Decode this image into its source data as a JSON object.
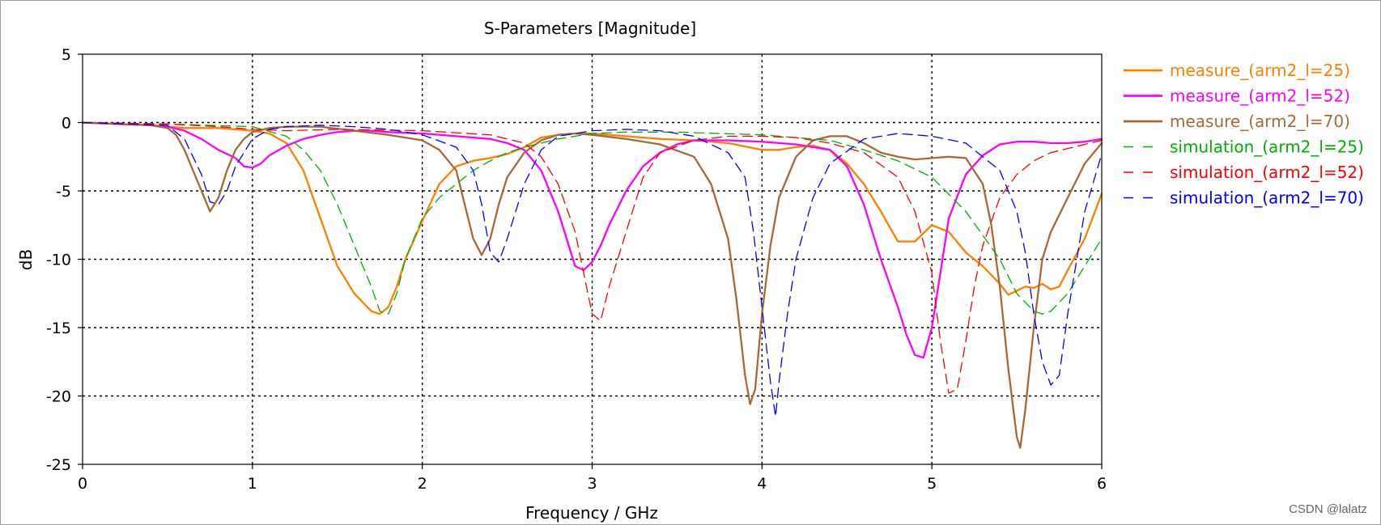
{
  "chart_data": {
    "type": "line",
    "title": "S-Parameters [Magnitude]",
    "xlabel": "Frequency / GHz",
    "ylabel": "dB",
    "xlim": [
      0,
      6
    ],
    "ylim": [
      -25,
      5
    ],
    "xticks": [
      0,
      1,
      2,
      3,
      4,
      5,
      6
    ],
    "yticks": [
      5,
      0,
      -5,
      -10,
      -15,
      -20,
      -25
    ],
    "grid": true,
    "legend_position": "right",
    "series": [
      {
        "name": "measure_(arm2_l=25)",
        "color": "#ff7f00",
        "style": "solid",
        "x": [
          0,
          0.2,
          0.4,
          0.5,
          0.6,
          0.8,
          1.0,
          1.1,
          1.2,
          1.3,
          1.4,
          1.5,
          1.6,
          1.7,
          1.75,
          1.8,
          1.85,
          1.9,
          2.0,
          2.1,
          2.2,
          2.3,
          2.4,
          2.5,
          2.6,
          2.7,
          2.8,
          2.9,
          3.0,
          3.2,
          3.4,
          3.6,
          3.8,
          4.0,
          4.1,
          4.2,
          4.3,
          4.4,
          4.5,
          4.6,
          4.7,
          4.8,
          4.9,
          5.0,
          5.1,
          5.2,
          5.3,
          5.4,
          5.45,
          5.5,
          5.55,
          5.6,
          5.65,
          5.7,
          5.75,
          5.8,
          5.9,
          6.0
        ],
        "y": [
          0,
          -0.1,
          -0.2,
          -0.3,
          -0.4,
          -0.4,
          -0.6,
          -0.8,
          -1.5,
          -3.5,
          -7,
          -10.5,
          -12.5,
          -13.8,
          -14,
          -13.5,
          -12,
          -10,
          -7.2,
          -4.5,
          -3.2,
          -2.8,
          -2.6,
          -2.3,
          -1.8,
          -1.1,
          -0.9,
          -0.8,
          -0.8,
          -1.0,
          -1.2,
          -1.3,
          -1.5,
          -2.0,
          -2.0,
          -1.8,
          -1.7,
          -2.0,
          -3.0,
          -4.5,
          -6.5,
          -8.7,
          -8.7,
          -7.5,
          -8.0,
          -9.5,
          -10.5,
          -11.8,
          -12.6,
          -12.3,
          -12.0,
          -12.1,
          -11.8,
          -12.2,
          -12.0,
          -10.8,
          -8.5,
          -5.2
        ]
      },
      {
        "name": "measure_(arm2_l=52)",
        "color": "#ff00ff",
        "style": "solid",
        "x": [
          0,
          0.2,
          0.4,
          0.5,
          0.6,
          0.7,
          0.8,
          0.9,
          0.95,
          1.0,
          1.05,
          1.1,
          1.2,
          1.3,
          1.4,
          1.5,
          1.6,
          1.7,
          1.8,
          2.0,
          2.2,
          2.4,
          2.5,
          2.6,
          2.7,
          2.8,
          2.85,
          2.9,
          2.95,
          3.0,
          3.05,
          3.1,
          3.2,
          3.3,
          3.4,
          3.5,
          3.6,
          3.8,
          4.0,
          4.2,
          4.4,
          4.5,
          4.6,
          4.7,
          4.8,
          4.85,
          4.9,
          4.95,
          5.0,
          5.05,
          5.1,
          5.2,
          5.3,
          5.4,
          5.5,
          5.6,
          5.7,
          5.8,
          5.9,
          6.0
        ],
        "y": [
          0,
          -0.1,
          -0.2,
          -0.3,
          -0.6,
          -1.2,
          -2.0,
          -2.6,
          -3.2,
          -3.3,
          -3.0,
          -2.4,
          -1.7,
          -1.2,
          -0.9,
          -0.7,
          -0.6,
          -0.6,
          -0.7,
          -0.8,
          -1.0,
          -1.2,
          -1.5,
          -2.0,
          -3.5,
          -6.5,
          -8.5,
          -10.5,
          -10.8,
          -10.2,
          -9.0,
          -7.5,
          -5.0,
          -3.2,
          -2.2,
          -1.6,
          -1.3,
          -1.3,
          -1.4,
          -1.6,
          -2.0,
          -3.2,
          -6.0,
          -10.0,
          -13.5,
          -15.5,
          -17.0,
          -17.2,
          -15.0,
          -11.0,
          -7.0,
          -3.8,
          -2.4,
          -1.6,
          -1.4,
          -1.4,
          -1.5,
          -1.5,
          -1.4,
          -1.2
        ]
      },
      {
        "name": "measure_(arm2_l=70)",
        "color": "#a8693a",
        "style": "solid",
        "x": [
          0,
          0.2,
          0.4,
          0.5,
          0.55,
          0.6,
          0.65,
          0.7,
          0.75,
          0.8,
          0.85,
          0.9,
          0.95,
          1.0,
          1.1,
          1.2,
          1.4,
          1.6,
          1.8,
          2.0,
          2.1,
          2.2,
          2.25,
          2.3,
          2.35,
          2.4,
          2.45,
          2.5,
          2.6,
          2.7,
          2.8,
          2.9,
          3.0,
          3.2,
          3.4,
          3.6,
          3.7,
          3.8,
          3.85,
          3.9,
          3.93,
          3.96,
          4.0,
          4.05,
          4.1,
          4.2,
          4.3,
          4.4,
          4.5,
          4.6,
          4.7,
          4.8,
          4.9,
          5.0,
          5.1,
          5.2,
          5.3,
          5.35,
          5.4,
          5.45,
          5.5,
          5.52,
          5.55,
          5.6,
          5.65,
          5.7,
          5.8,
          5.9,
          6.0
        ],
        "y": [
          0,
          -0.1,
          -0.2,
          -0.4,
          -0.9,
          -2.0,
          -3.5,
          -5.0,
          -6.5,
          -5.5,
          -3.5,
          -2.0,
          -1.2,
          -0.7,
          -0.4,
          -0.3,
          -0.3,
          -0.6,
          -0.9,
          -1.3,
          -2.0,
          -3.5,
          -6.0,
          -8.5,
          -9.7,
          -8.5,
          -6.0,
          -4.0,
          -2.2,
          -1.3,
          -0.9,
          -0.8,
          -0.9,
          -1.2,
          -1.6,
          -2.5,
          -4.5,
          -8.5,
          -13.0,
          -18.5,
          -20.6,
          -19.5,
          -14.0,
          -9.0,
          -5.5,
          -2.5,
          -1.3,
          -1.0,
          -1.0,
          -1.5,
          -2.2,
          -2.5,
          -2.7,
          -2.6,
          -2.5,
          -2.6,
          -4.5,
          -7.5,
          -12.0,
          -18.0,
          -23.0,
          -23.8,
          -21.0,
          -15.0,
          -10.0,
          -8.0,
          -5.5,
          -3.0,
          -1.5
        ]
      },
      {
        "name": "simulation_(arm2_l=25)",
        "color": "#00b000",
        "style": "dashed",
        "x": [
          0,
          0.5,
          1.0,
          1.2,
          1.3,
          1.4,
          1.5,
          1.6,
          1.7,
          1.75,
          1.8,
          1.85,
          1.9,
          2.0,
          2.1,
          2.2,
          2.3,
          2.4,
          2.5,
          2.6,
          2.8,
          3.0,
          3.2,
          3.5,
          4.0,
          4.4,
          4.6,
          4.8,
          5.0,
          5.2,
          5.4,
          5.5,
          5.6,
          5.65,
          5.7,
          5.8,
          5.9,
          6.0
        ],
        "y": [
          0,
          -0.1,
          -0.3,
          -1.0,
          -2.0,
          -3.5,
          -6.0,
          -9.0,
          -12.0,
          -13.8,
          -14.0,
          -12.5,
          -10.0,
          -7.0,
          -5.5,
          -4.5,
          -3.5,
          -2.8,
          -2.2,
          -1.8,
          -1.2,
          -0.8,
          -0.7,
          -0.7,
          -0.9,
          -1.3,
          -2.0,
          -2.8,
          -4.0,
          -6.5,
          -10.0,
          -12.5,
          -13.8,
          -14.0,
          -13.8,
          -12.5,
          -10.5,
          -8.5
        ]
      },
      {
        "name": "simulation_(arm2_l=52)",
        "color": "#ff0000",
        "style": "dashed",
        "x": [
          0,
          0.5,
          0.8,
          1.0,
          1.2,
          1.5,
          2.0,
          2.4,
          2.6,
          2.7,
          2.8,
          2.9,
          2.95,
          3.0,
          3.05,
          3.1,
          3.2,
          3.3,
          3.4,
          3.6,
          3.8,
          4.0,
          4.2,
          4.4,
          4.6,
          4.8,
          4.9,
          5.0,
          5.05,
          5.1,
          5.15,
          5.2,
          5.25,
          5.3,
          5.4,
          5.5,
          5.6,
          5.7,
          5.8,
          6.0
        ],
        "y": [
          0,
          -0.1,
          -0.3,
          -0.5,
          -0.6,
          -0.5,
          -0.6,
          -0.9,
          -1.5,
          -2.5,
          -4.5,
          -8.0,
          -11.0,
          -14.0,
          -14.5,
          -12.0,
          -8.0,
          -4.0,
          -2.2,
          -1.3,
          -1.0,
          -1.0,
          -1.1,
          -1.5,
          -2.2,
          -4.0,
          -6.5,
          -11.0,
          -16.0,
          -19.8,
          -19.5,
          -16.0,
          -12.0,
          -9.0,
          -5.5,
          -3.8,
          -2.8,
          -2.2,
          -1.9,
          -1.3
        ]
      },
      {
        "name": "simulation_(arm2_l=70)",
        "color": "#0000ff",
        "style": "dashed",
        "x": [
          0,
          0.5,
          0.6,
          0.7,
          0.75,
          0.8,
          0.85,
          0.9,
          1.0,
          1.1,
          1.2,
          1.4,
          1.6,
          1.8,
          2.0,
          2.2,
          2.3,
          2.35,
          2.4,
          2.45,
          2.5,
          2.6,
          2.7,
          2.8,
          3.0,
          3.2,
          3.4,
          3.6,
          3.8,
          3.9,
          3.95,
          4.0,
          4.05,
          4.08,
          4.1,
          4.15,
          4.2,
          4.3,
          4.4,
          4.6,
          4.8,
          5.0,
          5.2,
          5.4,
          5.5,
          5.55,
          5.6,
          5.65,
          5.7,
          5.75,
          5.8,
          5.9,
          6.0
        ],
        "y": [
          0,
          -0.2,
          -1.2,
          -3.8,
          -5.8,
          -6.0,
          -5.0,
          -3.2,
          -1.2,
          -0.5,
          -0.3,
          -0.2,
          -0.3,
          -0.5,
          -0.9,
          -1.8,
          -3.5,
          -6.0,
          -9.5,
          -10.2,
          -8.5,
          -4.5,
          -2.0,
          -1.0,
          -0.6,
          -0.5,
          -0.6,
          -1.0,
          -2.2,
          -4.0,
          -8.0,
          -13.5,
          -19.0,
          -21.5,
          -19.0,
          -14.0,
          -10.0,
          -5.5,
          -3.0,
          -1.2,
          -0.8,
          -1.0,
          -1.5,
          -3.5,
          -6.5,
          -9.5,
          -14.0,
          -17.5,
          -19.2,
          -18.5,
          -14.0,
          -6.5,
          -2.3
        ]
      }
    ]
  },
  "watermark": "CSDN @lalatz"
}
